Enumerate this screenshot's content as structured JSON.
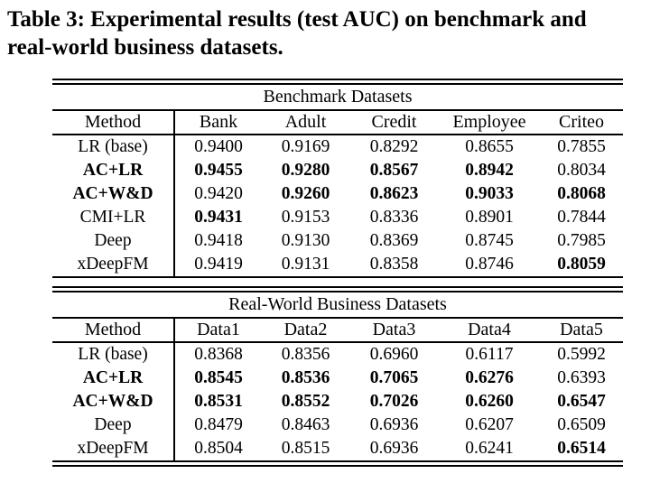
{
  "caption": {
    "lines": [
      "Table 3: Experimental results (test AUC) on benchmark and",
      "real-world business datasets."
    ]
  },
  "tables": [
    {
      "section_title": "Benchmark Datasets",
      "columns": [
        "Method",
        "Bank",
        "Adult",
        "Credit",
        "Employee",
        "Criteo"
      ],
      "rows": [
        {
          "method": "LR (base)",
          "method_bold": false,
          "values": [
            "0.9400",
            "0.9169",
            "0.8292",
            "0.8655",
            "0.7855"
          ],
          "bold": [
            false,
            false,
            false,
            false,
            false
          ]
        },
        {
          "method": "AC+LR",
          "method_bold": true,
          "values": [
            "0.9455",
            "0.9280",
            "0.8567",
            "0.8942",
            "0.8034"
          ],
          "bold": [
            true,
            true,
            true,
            true,
            false
          ]
        },
        {
          "method": "AC+W&D",
          "method_bold": true,
          "values": [
            "0.9420",
            "0.9260",
            "0.8623",
            "0.9033",
            "0.8068"
          ],
          "bold": [
            false,
            true,
            true,
            true,
            true
          ]
        },
        {
          "method": "CMI+LR",
          "method_bold": false,
          "values": [
            "0.9431",
            "0.9153",
            "0.8336",
            "0.8901",
            "0.7844"
          ],
          "bold": [
            true,
            false,
            false,
            false,
            false
          ]
        },
        {
          "method": "Deep",
          "method_bold": false,
          "values": [
            "0.9418",
            "0.9130",
            "0.8369",
            "0.8745",
            "0.7985"
          ],
          "bold": [
            false,
            false,
            false,
            false,
            false
          ]
        },
        {
          "method": "xDeepFM",
          "method_bold": false,
          "values": [
            "0.9419",
            "0.9131",
            "0.8358",
            "0.8746",
            "0.8059"
          ],
          "bold": [
            false,
            false,
            false,
            false,
            true
          ]
        }
      ]
    },
    {
      "section_title": "Real-World Business Datasets",
      "columns": [
        "Method",
        "Data1",
        "Data2",
        "Data3",
        "Data4",
        "Data5"
      ],
      "rows": [
        {
          "method": "LR (base)",
          "method_bold": false,
          "values": [
            "0.8368",
            "0.8356",
            "0.6960",
            "0.6117",
            "0.5992"
          ],
          "bold": [
            false,
            false,
            false,
            false,
            false
          ]
        },
        {
          "method": "AC+LR",
          "method_bold": true,
          "values": [
            "0.8545",
            "0.8536",
            "0.7065",
            "0.6276",
            "0.6393"
          ],
          "bold": [
            true,
            true,
            true,
            true,
            false
          ]
        },
        {
          "method": "AC+W&D",
          "method_bold": true,
          "values": [
            "0.8531",
            "0.8552",
            "0.7026",
            "0.6260",
            "0.6547"
          ],
          "bold": [
            true,
            true,
            true,
            true,
            true
          ]
        },
        {
          "method": "Deep",
          "method_bold": false,
          "values": [
            "0.8479",
            "0.8463",
            "0.6936",
            "0.6207",
            "0.6509"
          ],
          "bold": [
            false,
            false,
            false,
            false,
            false
          ]
        },
        {
          "method": "xDeepFM",
          "method_bold": false,
          "values": [
            "0.8504",
            "0.8515",
            "0.6936",
            "0.6241",
            "0.6514"
          ],
          "bold": [
            false,
            false,
            false,
            false,
            true
          ]
        }
      ]
    }
  ]
}
